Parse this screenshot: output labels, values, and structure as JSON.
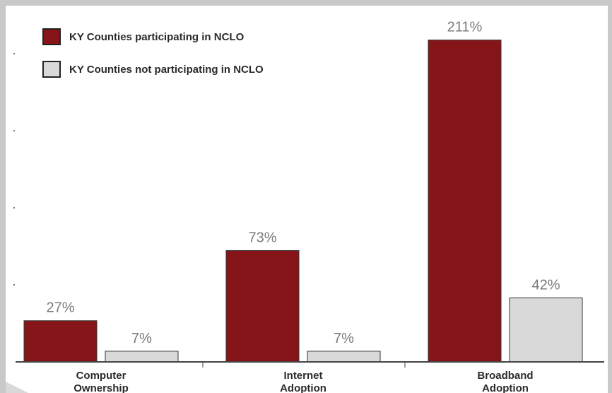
{
  "colors": {
    "background": "#ffffff",
    "frame": "#c9c9c9",
    "participating": "#86151a",
    "not_participating": "#d9d9d9",
    "value_label": "#7a7a7a",
    "axis": "#444444"
  },
  "legend": [
    {
      "label": "KY Counties participating in NCLO",
      "color": "#86151a"
    },
    {
      "label": "KY Counties not participating in NCLO",
      "color": "#d9d9d9"
    }
  ],
  "chart_data": {
    "type": "bar",
    "categories": [
      "Computer Ownership",
      "Internet Adoption",
      "Broadband Adoption"
    ],
    "category_lines": [
      [
        "Computer",
        "Ownership"
      ],
      [
        "Internet",
        "Adoption"
      ],
      [
        "Broadband",
        "Adoption"
      ]
    ],
    "series": [
      {
        "name": "KY Counties participating in NCLO",
        "values": [
          27,
          73,
          211
        ],
        "labels": [
          "27%",
          "73%",
          "211%"
        ]
      },
      {
        "name": "KY Counties not participating in NCLO",
        "values": [
          7,
          7,
          42
        ],
        "labels": [
          "7%",
          "7%",
          "42%"
        ]
      }
    ],
    "ylim": [
      0,
      215
    ],
    "legend_position": "top-left",
    "grid": false
  }
}
